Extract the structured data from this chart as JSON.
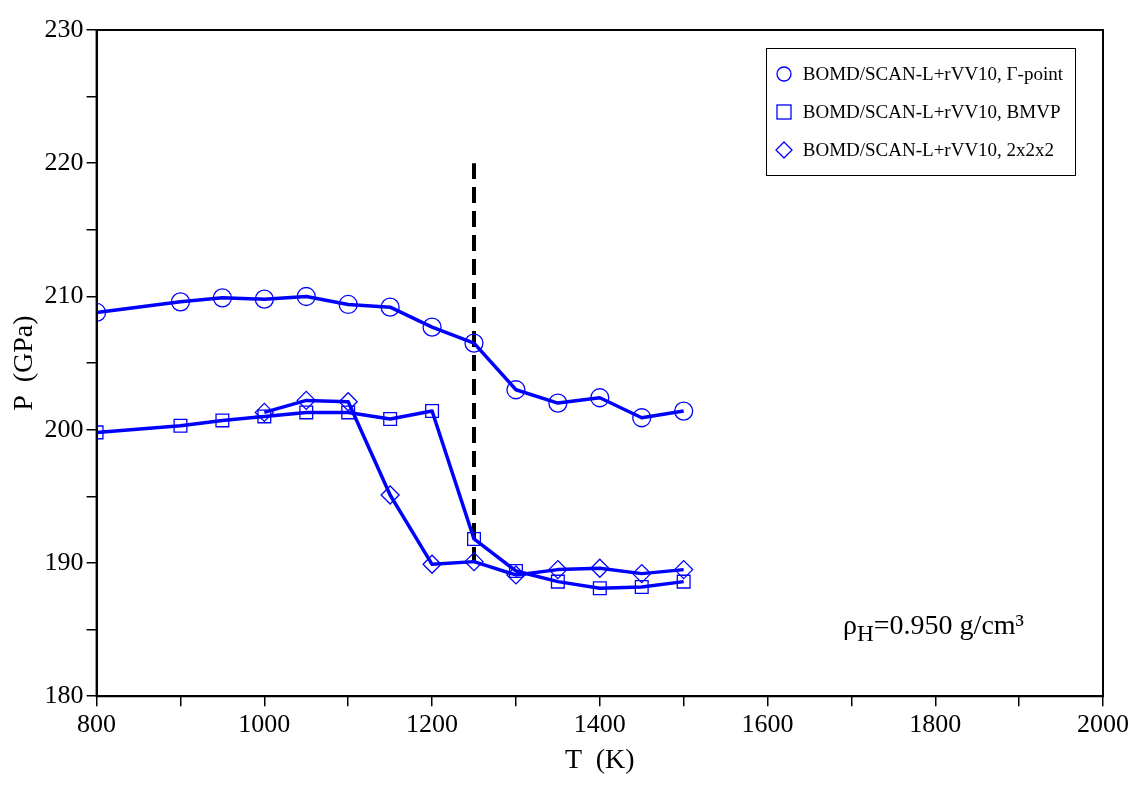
{
  "chart_data": {
    "type": "line",
    "xlabel": "T  (K)",
    "ylabel": "P  (GPa)",
    "xlim": [
      800,
      2000
    ],
    "xticks": [
      800,
      {
        "value": 900,
        "label": null
      },
      1000,
      {
        "value": 1100,
        "label": null
      },
      1200,
      {
        "value": 1300,
        "label": null
      },
      1400,
      {
        "value": 1500,
        "label": null
      },
      1600,
      {
        "value": 1700,
        "label": null
      },
      1800,
      {
        "value": 1900,
        "label": null
      },
      2000
    ],
    "ylim": [
      180,
      230
    ],
    "yticks": [
      180,
      {
        "value": 185,
        "label": null
      },
      190,
      {
        "value": 195,
        "label": null
      },
      200,
      {
        "value": 205,
        "label": null
      },
      210,
      {
        "value": 215,
        "label": null
      },
      220,
      {
        "value": 225,
        "label": null
      },
      230
    ],
    "legend": "top right",
    "grid": false,
    "annotations": [
      "ρ$_{H}$=0.950 g/cm³"
    ],
    "series": [
      {
        "name": "BOMD/SCAN-L+rVV10, Γ-point",
        "color": "#0000ff",
        "marker": "circle",
        "x": [
          800,
          900,
          950,
          1000,
          1050,
          1100,
          1150,
          1200,
          1250,
          1300,
          1350,
          1400,
          1450,
          1500
        ],
        "values": [
          208.8,
          209.6,
          209.9,
          209.8,
          210.0,
          209.4,
          209.2,
          207.7,
          206.5,
          203.0,
          202.0,
          202.4,
          200.9,
          201.4
        ]
      },
      {
        "name": "BOMD/SCAN-L+rVV10, BMVP",
        "color": "#0000ff",
        "marker": "square",
        "x": [
          800,
          900,
          950,
          1000,
          1050,
          1100,
          1150,
          1200,
          1250,
          1300,
          1350,
          1400,
          1450,
          1500
        ],
        "values": [
          199.8,
          200.3,
          200.7,
          201.0,
          201.3,
          201.3,
          200.8,
          201.4,
          191.8,
          189.4,
          188.6,
          188.1,
          188.2,
          188.6
        ]
      },
      {
        "name": "BOMD/SCAN-L+rVV10, 2x2x2",
        "color": "#0000ff",
        "marker": "diamond",
        "x": [
          1000,
          1050,
          1100,
          1150,
          1200,
          1250,
          1300,
          1350,
          1400,
          1450,
          1500
        ],
        "values": [
          201.3,
          202.2,
          202.1,
          195.1,
          189.9,
          190.1,
          189.1,
          189.5,
          189.6,
          189.2,
          189.5
        ]
      },
      {
        "type": "line",
        "color": "#000000",
        "marker": "none",
        "line_style": "dashed",
        "x": [
          1250,
          1250
        ],
        "values": [
          190,
          220
        ]
      }
    ]
  }
}
